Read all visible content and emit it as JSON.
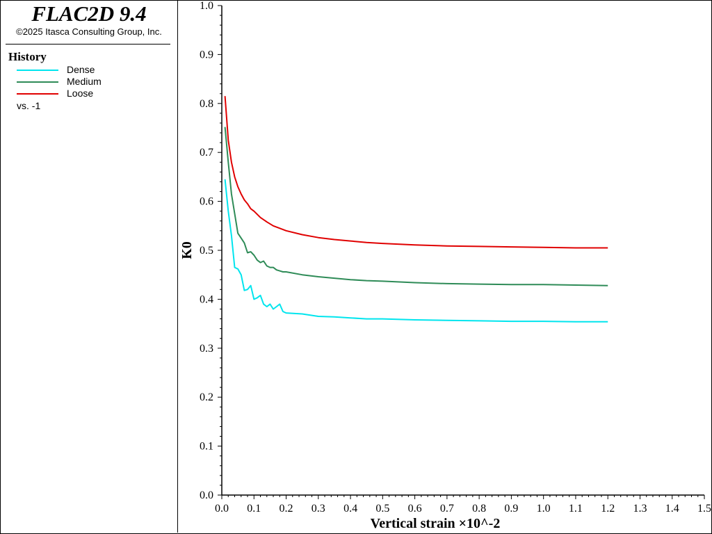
{
  "header": {
    "title": "FLAC2D 9.4",
    "copyright": "©2025 Itasca Consulting Group, Inc."
  },
  "legend": {
    "title": "History",
    "items": [
      {
        "label": "Dense",
        "color": "#00e5ee"
      },
      {
        "label": "Medium",
        "color": "#2e8b57"
      },
      {
        "label": "Loose",
        "color": "#e00000"
      }
    ],
    "vs_label": "vs. -1"
  },
  "chart_data": {
    "type": "line",
    "xlabel": "Vertical strain ×10^-2",
    "ylabel": "K0",
    "xlim": [
      0.0,
      1.5
    ],
    "ylim": [
      0.0,
      1.0
    ],
    "xticks": [
      "0.0",
      "0.1",
      "0.2",
      "0.3",
      "0.4",
      "0.5",
      "0.6",
      "0.7",
      "0.8",
      "0.9",
      "1.0",
      "1.1",
      "1.2",
      "1.3",
      "1.4",
      "1.5"
    ],
    "yticks": [
      "0.0",
      "0.1",
      "0.2",
      "0.3",
      "0.4",
      "0.5",
      "0.6",
      "0.7",
      "0.8",
      "0.9",
      "1.0"
    ],
    "grid": false,
    "series": [
      {
        "name": "Dense",
        "color": "#00e5ee",
        "x": [
          0.01,
          0.02,
          0.03,
          0.04,
          0.05,
          0.06,
          0.07,
          0.08,
          0.09,
          0.1,
          0.11,
          0.12,
          0.13,
          0.14,
          0.15,
          0.16,
          0.17,
          0.18,
          0.19,
          0.2,
          0.25,
          0.3,
          0.35,
          0.4,
          0.45,
          0.5,
          0.6,
          0.7,
          0.8,
          0.9,
          1.0,
          1.1,
          1.2
        ],
        "y": [
          0.645,
          0.58,
          0.53,
          0.465,
          0.462,
          0.45,
          0.418,
          0.42,
          0.428,
          0.4,
          0.403,
          0.408,
          0.39,
          0.385,
          0.39,
          0.38,
          0.385,
          0.39,
          0.375,
          0.372,
          0.37,
          0.365,
          0.364,
          0.362,
          0.36,
          0.36,
          0.358,
          0.357,
          0.356,
          0.355,
          0.355,
          0.354,
          0.354
        ]
      },
      {
        "name": "Medium",
        "color": "#2e8b57",
        "x": [
          0.01,
          0.02,
          0.03,
          0.04,
          0.05,
          0.06,
          0.07,
          0.08,
          0.09,
          0.1,
          0.11,
          0.12,
          0.13,
          0.14,
          0.15,
          0.16,
          0.17,
          0.18,
          0.19,
          0.2,
          0.25,
          0.3,
          0.35,
          0.4,
          0.45,
          0.5,
          0.6,
          0.7,
          0.8,
          0.9,
          1.0,
          1.1,
          1.2
        ],
        "y": [
          0.752,
          0.68,
          0.615,
          0.575,
          0.535,
          0.525,
          0.515,
          0.495,
          0.497,
          0.49,
          0.48,
          0.475,
          0.478,
          0.468,
          0.465,
          0.465,
          0.46,
          0.458,
          0.456,
          0.456,
          0.45,
          0.446,
          0.443,
          0.44,
          0.438,
          0.437,
          0.434,
          0.432,
          0.431,
          0.43,
          0.43,
          0.429,
          0.428
        ]
      },
      {
        "name": "Loose",
        "color": "#e00000",
        "x": [
          0.01,
          0.02,
          0.03,
          0.04,
          0.05,
          0.06,
          0.07,
          0.08,
          0.09,
          0.1,
          0.12,
          0.14,
          0.16,
          0.18,
          0.2,
          0.25,
          0.3,
          0.35,
          0.4,
          0.45,
          0.5,
          0.6,
          0.7,
          0.8,
          0.9,
          1.0,
          1.1,
          1.2
        ],
        "y": [
          0.815,
          0.725,
          0.68,
          0.65,
          0.63,
          0.615,
          0.603,
          0.595,
          0.585,
          0.58,
          0.567,
          0.558,
          0.55,
          0.545,
          0.54,
          0.532,
          0.526,
          0.522,
          0.519,
          0.516,
          0.514,
          0.511,
          0.509,
          0.508,
          0.507,
          0.506,
          0.505,
          0.505
        ]
      }
    ]
  }
}
